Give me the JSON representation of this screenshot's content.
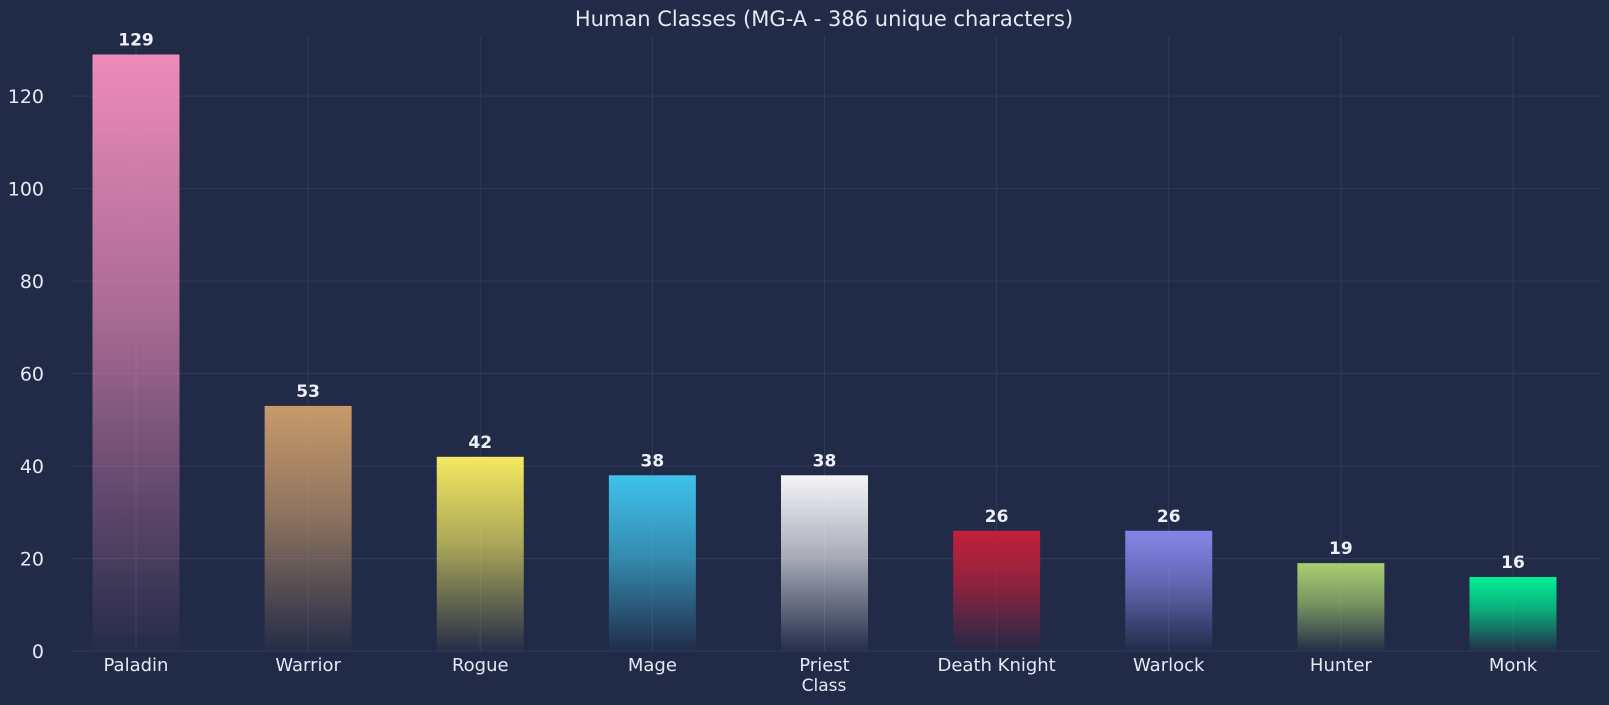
{
  "chart_data": {
    "type": "bar",
    "title": "Human Classes (MG-A - 386 unique characters)",
    "xlabel": "Class",
    "ylabel": "",
    "ylim": [
      0,
      133
    ],
    "yticks": [
      0,
      20,
      40,
      60,
      80,
      100,
      120
    ],
    "grid": true,
    "legend": "none",
    "categories": [
      "Paladin",
      "Warrior",
      "Rogue",
      "Mage",
      "Priest",
      "Death Knight",
      "Warlock",
      "Hunter",
      "Monk"
    ],
    "values": [
      129,
      53,
      42,
      38,
      38,
      26,
      26,
      19,
      16
    ],
    "value_labels": [
      "129",
      "53",
      "42",
      "38",
      "38",
      "26",
      "26",
      "19",
      "16"
    ],
    "colors": [
      "#ee8bbb",
      "#c79a6b",
      "#f4e961",
      "#3fc2eb",
      "#f5f5f7",
      "#c51f3a",
      "#8486e8",
      "#a8cf6f",
      "#00f097"
    ]
  }
}
